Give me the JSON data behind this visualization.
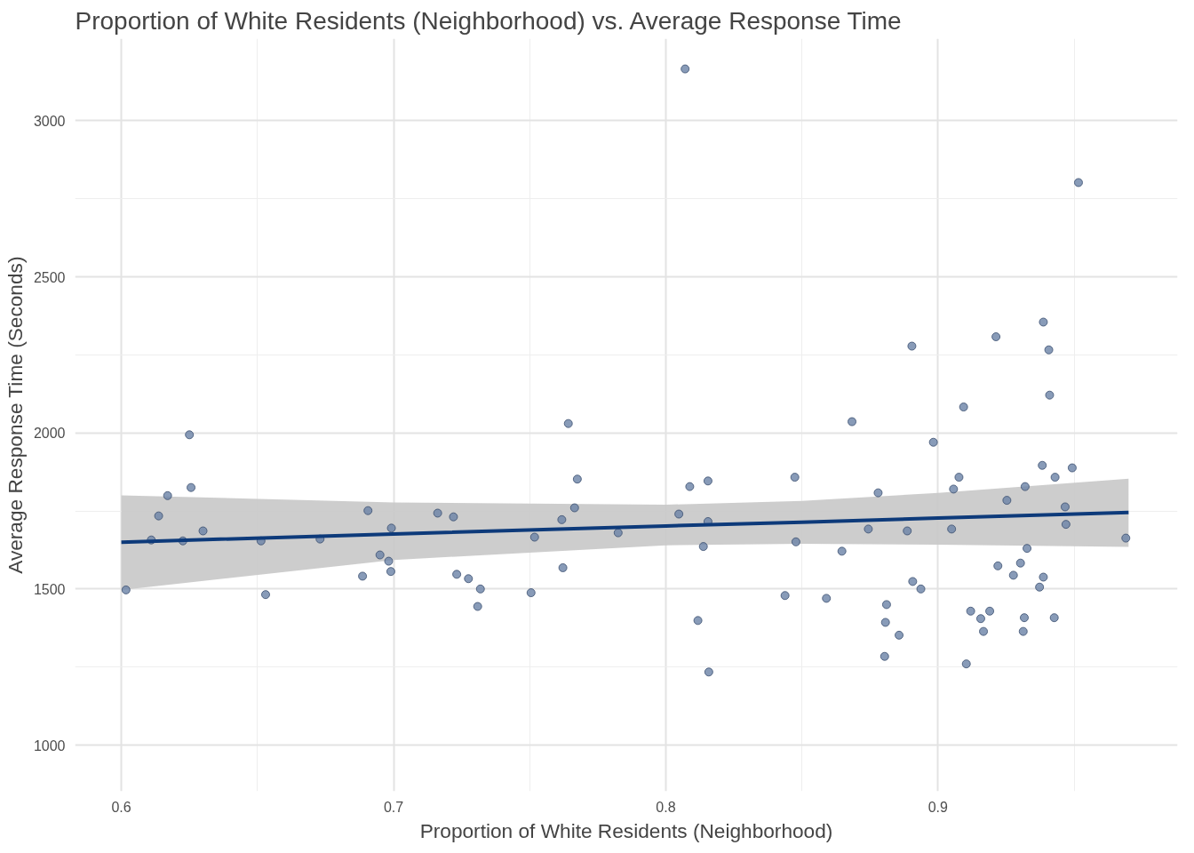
{
  "chart_data": {
    "type": "scatter",
    "title": "Proportion of White Residents (Neighborhood) vs. Average Response Time",
    "xlabel": "Proportion of White Residents (Neighborhood)",
    "ylabel": "Average Response Time (Seconds)",
    "xlim": [
      0.583,
      0.988
    ],
    "ylim": [
      852,
      3263
    ],
    "xticks": [
      0.6,
      0.7,
      0.8,
      0.9,
      {
        "value": 0.65,
        "label": null
      },
      {
        "value": 0.75,
        "label": null
      },
      {
        "value": 0.85,
        "label": null
      },
      {
        "value": 0.95,
        "label": null
      }
    ],
    "yticks": [
      1000,
      1500,
      2000,
      2500,
      3000,
      {
        "value": 1250,
        "label": null
      },
      {
        "value": 1750,
        "label": null
      },
      {
        "value": 2250,
        "label": null
      },
      {
        "value": 2750,
        "label": null
      }
    ],
    "grid": true,
    "series": [
      {
        "marker": "circle",
        "color": "#6a82a6",
        "x": [
          0.6017,
          0.611,
          0.6137,
          0.617,
          0.6226,
          0.625,
          0.6256,
          0.63,
          0.6513,
          0.653,
          0.673,
          0.6886,
          0.6906,
          0.695,
          0.6982,
          0.699,
          0.6992,
          0.7162,
          0.722,
          0.7232,
          0.7275,
          0.7309,
          0.7319,
          0.7505,
          0.7518,
          0.7618,
          0.7622,
          0.7642,
          0.7665,
          0.7675,
          0.7825,
          0.8048,
          0.8071,
          0.8088,
          0.8118,
          0.8138,
          0.8155,
          0.8155,
          0.8158,
          0.8438,
          0.8474,
          0.8478,
          0.859,
          0.8647,
          0.8684,
          0.8744,
          0.878,
          0.8804,
          0.8807,
          0.8811,
          0.8857,
          0.8887,
          0.8904,
          0.8907,
          0.8937,
          0.8983,
          0.905,
          0.9057,
          0.9077,
          0.9094,
          0.9104,
          0.912,
          0.9157,
          0.9167,
          0.919,
          0.9213,
          0.922,
          0.9253,
          0.9277,
          0.9303,
          0.9313,
          0.9317,
          0.932,
          0.9327,
          0.9373,
          0.9383,
          0.9387,
          0.9387,
          0.9407,
          0.941,
          0.9427,
          0.943,
          0.9467,
          0.947,
          0.9493,
          0.9516,
          0.969
        ],
        "values": [
          1497,
          1657,
          1734,
          1799,
          1654,
          1994,
          1825,
          1686,
          1654,
          1482,
          1660,
          1541,
          1751,
          1609,
          1589,
          1556,
          1695,
          1743,
          1731,
          1547,
          1533,
          1444,
          1500,
          1488,
          1666,
          1722,
          1568,
          2030,
          1760,
          1852,
          1680,
          1740,
          3166,
          1828,
          1399,
          1636,
          1716,
          1846,
          1234,
          1479,
          1858,
          1651,
          1470,
          1621,
          2036,
          1692,
          1808,
          1284,
          1393,
          1450,
          1352,
          1686,
          2278,
          1524,
          1500,
          1970,
          1692,
          1820,
          1858,
          2083,
          1260,
          1429,
          1405,
          1364,
          1429,
          2308,
          1574,
          1784,
          1544,
          1583,
          1364,
          1408,
          1828,
          1630,
          1506,
          1896,
          2355,
          1538,
          2266,
          2121,
          1408,
          1858,
          1763,
          1707,
          1888,
          2802,
          1663
        ]
      },
      {
        "type": "line",
        "color": "#0d3a7a",
        "x": [
          0.6,
          0.7,
          0.8,
          0.85,
          0.9,
          0.97
        ],
        "values": [
          1650,
          1676,
          1702,
          1714,
          1727,
          1745
        ],
        "lower": [
          1497,
          1593,
          1640,
          1645,
          1642,
          1635
        ],
        "upper": [
          1800,
          1777,
          1770,
          1782,
          1808,
          1853
        ]
      }
    ]
  }
}
